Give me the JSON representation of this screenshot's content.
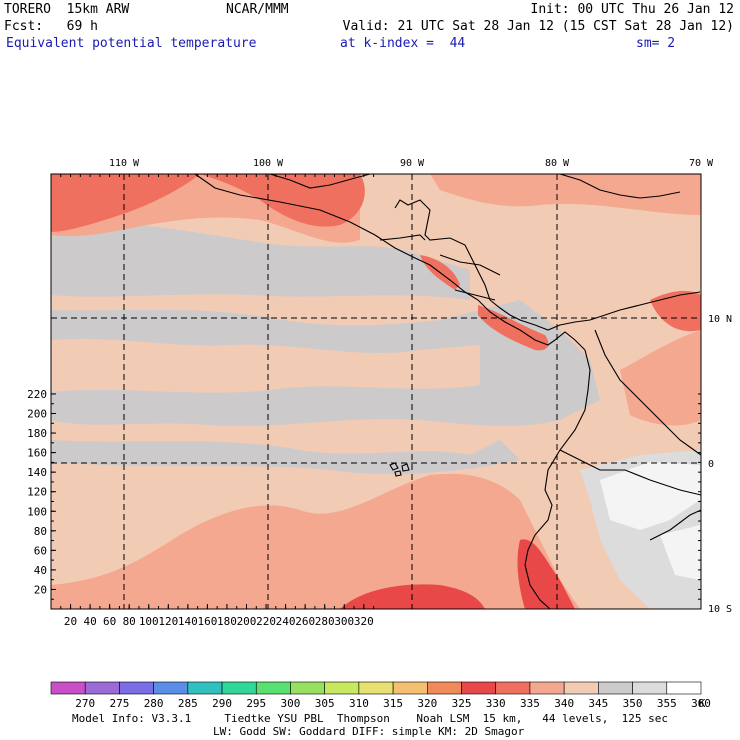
{
  "header": {
    "model": "TORERO  15km ARW",
    "center": "NCAR/MMM",
    "init": "Init: 00 UTC Thu 26 Jan 12",
    "fcst": "Fcst:   69 h",
    "valid": "Valid: 21 UTC Sat 28 Jan 12 (15 CST Sat 28 Jan 12)",
    "field": "Equivalent potential temperature",
    "level": "at k-index =  44",
    "smooth": "sm= 2"
  },
  "axes": {
    "left_ticks": [
      "20",
      "40",
      "60",
      "80",
      "100",
      "120",
      "140",
      "160",
      "180",
      "200",
      "220"
    ],
    "bottom_ticks": [
      "20",
      "40",
      "60",
      "80",
      "100",
      "120",
      "140",
      "160",
      "180",
      "200",
      "220",
      "240",
      "260",
      "280",
      "300",
      "320"
    ],
    "top_lon_labels": [
      "110 W",
      "100 W",
      "90 W",
      "80 W",
      "70 W"
    ],
    "right_lat_labels": [
      "10 N",
      "0",
      "10 S"
    ]
  },
  "colorbar": {
    "labels": [
      "270",
      "275",
      "280",
      "285",
      "290",
      "295",
      "300",
      "305",
      "310",
      "315",
      "320",
      "325",
      "330",
      "335",
      "340",
      "345",
      "350",
      "355",
      "360"
    ],
    "unit": "K",
    "colors": [
      "#c84fc8",
      "#9a6ad6",
      "#7a6ee6",
      "#5a8ee6",
      "#30c0c0",
      "#30d898",
      "#58e070",
      "#98e060",
      "#c8e860",
      "#e8e070",
      "#f2c070",
      "#f08a5a",
      "#e84848",
      "#f07060",
      "#f5a890",
      "#f2cbb4",
      "#cccaca",
      "#dcdcdc",
      "#ffffff"
    ]
  },
  "map_colors": {
    "low": "#cccaca",
    "mid": "#f2cbb4",
    "high": "#f5a890",
    "higher": "#f07060",
    "max": "#e84848",
    "cold": "#eeeeee"
  },
  "footer": {
    "line1": "Model Info: V3.3.1     Tiedtke YSU PBL  Thompson    Noah LSM  15 km,   44 levels,  125 sec",
    "line2": "LW: Godd SW: Goddard DIFF: simple KM: 2D Smagor"
  }
}
